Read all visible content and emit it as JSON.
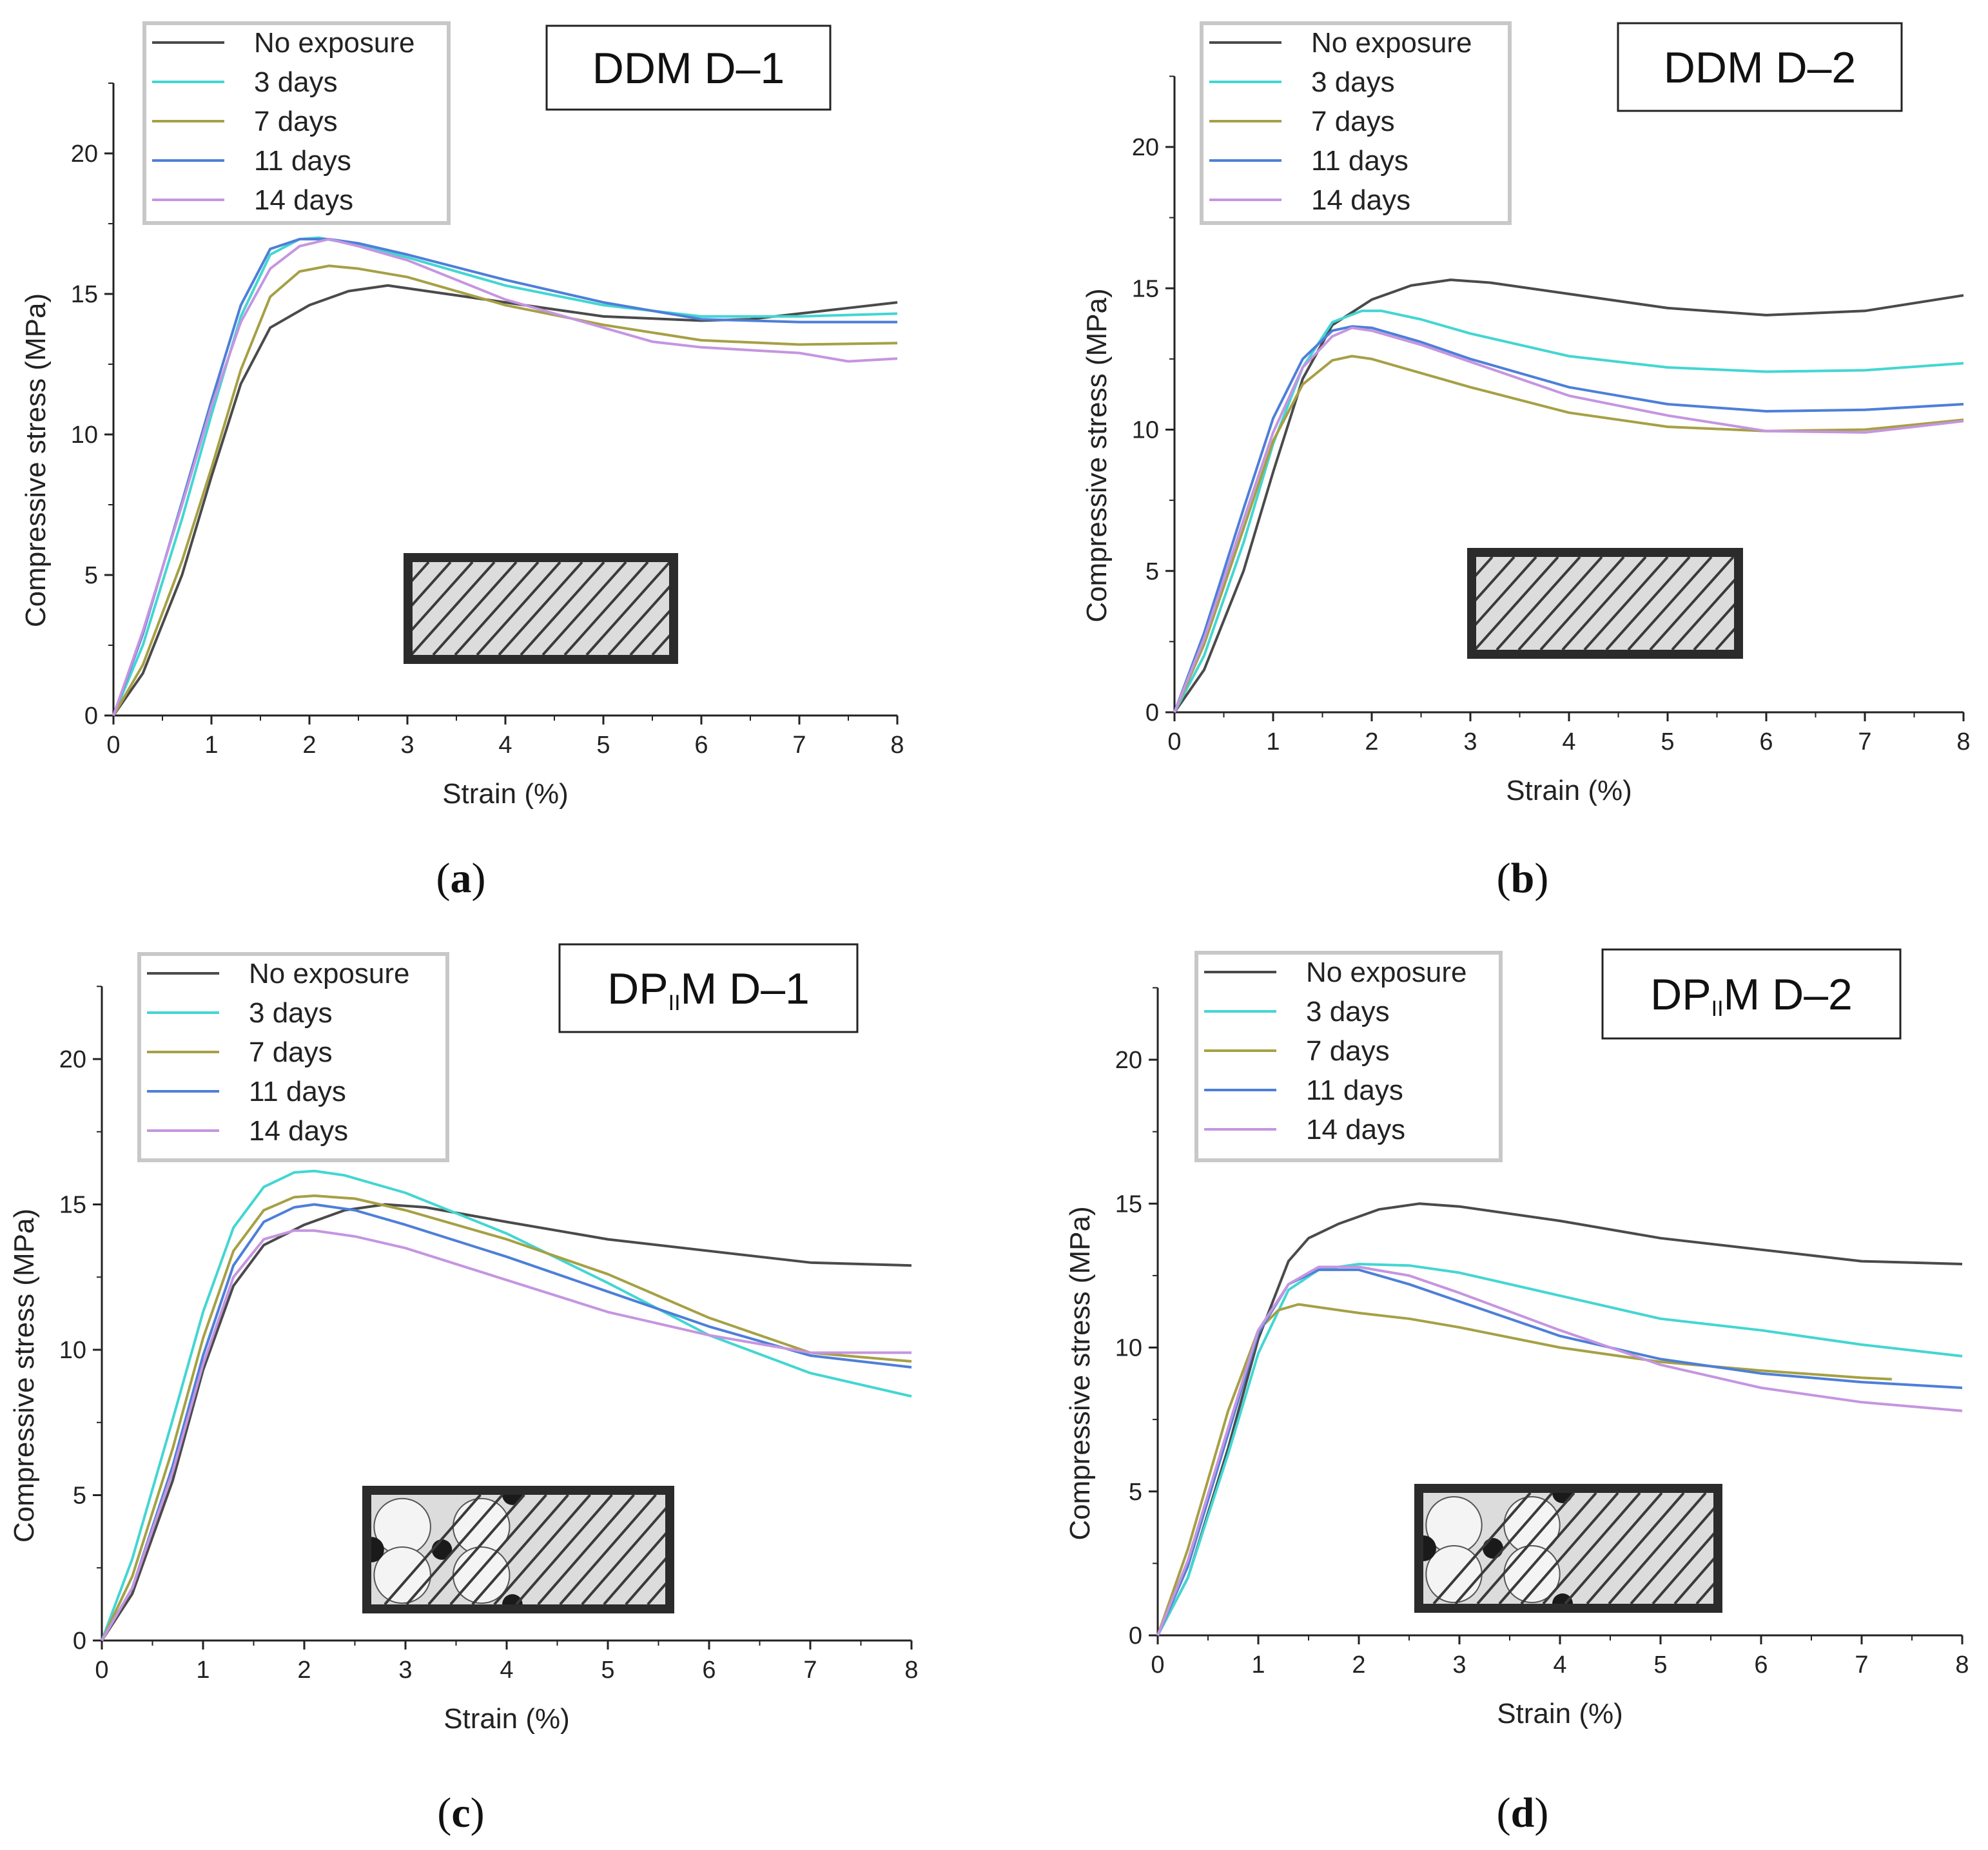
{
  "figure": {
    "colors": {
      "no_exposure": "#4a4a4a",
      "d3": "#43d6d2",
      "d7": "#a6a045",
      "d11": "#4d7fd8",
      "d14": "#c595e0"
    },
    "legend_border": "#c8c8c8",
    "inset": {
      "frame": "#2b2b2b",
      "field": "#dcdcdc"
    }
  },
  "chart_data": [
    {
      "panel": "a",
      "caption": "a",
      "type": "line",
      "title": "DDM D–1",
      "xlabel": "Strain  (%)",
      "ylabel": "Compressive stress (MPa)",
      "xlim": [
        0,
        8
      ],
      "ylim": [
        0,
        22.5
      ],
      "xticks": [
        "0",
        "1",
        "2",
        "3",
        "4",
        "5",
        "6",
        "7",
        "8"
      ],
      "yticks": [
        "0",
        "5",
        "10",
        "15",
        "20"
      ],
      "legend_position": "top-left",
      "inset_pattern": "lattice",
      "series": [
        {
          "name": "No exposure",
          "color_key": "no_exposure",
          "x": [
            0,
            0.3,
            0.7,
            1.0,
            1.3,
            1.6,
            2.0,
            2.4,
            2.8,
            3.2,
            4.0,
            5.0,
            6.0,
            6.5,
            7.0,
            7.5,
            8.0
          ],
          "y": [
            0,
            1.5,
            5.0,
            8.5,
            11.8,
            13.8,
            14.6,
            15.1,
            15.3,
            15.1,
            14.7,
            14.2,
            14.05,
            14.1,
            14.3,
            14.5,
            14.7
          ]
        },
        {
          "name": "3 days",
          "color_key": "d3",
          "x": [
            0,
            0.3,
            0.7,
            1.0,
            1.3,
            1.6,
            1.9,
            2.1,
            2.4,
            3.0,
            4.0,
            5.0,
            6.0,
            7.0,
            8.0
          ],
          "y": [
            0,
            2.5,
            7.0,
            10.7,
            14.2,
            16.4,
            16.95,
            17.0,
            16.8,
            16.3,
            15.3,
            14.6,
            14.2,
            14.2,
            14.3
          ]
        },
        {
          "name": "7 days",
          "color_key": "d7",
          "x": [
            0,
            0.3,
            0.7,
            1.0,
            1.3,
            1.6,
            1.9,
            2.2,
            2.5,
            3.0,
            4.0,
            5.0,
            6.0,
            7.0,
            8.0
          ],
          "y": [
            0,
            1.8,
            5.5,
            8.8,
            12.3,
            14.9,
            15.8,
            16.0,
            15.9,
            15.6,
            14.6,
            13.9,
            13.35,
            13.2,
            13.25
          ]
        },
        {
          "name": "11 days",
          "color_key": "d11",
          "x": [
            0,
            0.3,
            0.7,
            1.0,
            1.3,
            1.6,
            1.9,
            2.2,
            2.5,
            3.0,
            4.0,
            5.0,
            6.0,
            7.0,
            8.0
          ],
          "y": [
            0,
            2.9,
            7.6,
            11.2,
            14.6,
            16.6,
            16.95,
            16.95,
            16.8,
            16.4,
            15.5,
            14.7,
            14.1,
            14.0,
            14.0
          ]
        },
        {
          "name": "14 days",
          "color_key": "d14",
          "x": [
            0,
            0.3,
            0.7,
            1.0,
            1.3,
            1.6,
            1.9,
            2.2,
            2.5,
            3.0,
            4.0,
            5.0,
            5.5,
            6.0,
            7.0,
            7.5,
            8.0
          ],
          "y": [
            0,
            3.0,
            7.5,
            11.0,
            14.0,
            15.9,
            16.7,
            16.95,
            16.7,
            16.2,
            14.8,
            13.8,
            13.3,
            13.1,
            12.9,
            12.6,
            12.7
          ]
        }
      ]
    },
    {
      "panel": "b",
      "caption": "b",
      "type": "line",
      "title": "DDM D–2",
      "xlabel": "Strain  (%)",
      "ylabel": "Compressive stress (MPa)",
      "xlim": [
        0,
        8
      ],
      "ylim": [
        0,
        22.5
      ],
      "xticks": [
        "0",
        "1",
        "2",
        "3",
        "4",
        "5",
        "6",
        "7",
        "8"
      ],
      "yticks": [
        "0",
        "5",
        "10",
        "15",
        "20"
      ],
      "legend_position": "top-left",
      "inset_pattern": "lattice",
      "series": [
        {
          "name": "No exposure",
          "color_key": "no_exposure",
          "x": [
            0,
            0.3,
            0.7,
            1.0,
            1.3,
            1.6,
            2.0,
            2.4,
            2.8,
            3.2,
            4.0,
            5.0,
            6.0,
            7.0,
            8.0
          ],
          "y": [
            0,
            1.5,
            5.0,
            8.5,
            11.8,
            13.7,
            14.6,
            15.1,
            15.3,
            15.2,
            14.8,
            14.3,
            14.05,
            14.2,
            14.75
          ]
        },
        {
          "name": "3 days",
          "color_key": "d3",
          "x": [
            0,
            0.3,
            0.7,
            1.0,
            1.3,
            1.6,
            1.9,
            2.1,
            2.5,
            3.0,
            4.0,
            5.0,
            6.0,
            7.0,
            8.0
          ],
          "y": [
            0,
            2.0,
            6.0,
            9.5,
            12.2,
            13.8,
            14.2,
            14.2,
            13.9,
            13.4,
            12.6,
            12.2,
            12.05,
            12.1,
            12.35
          ]
        },
        {
          "name": "7 days",
          "color_key": "d7",
          "x": [
            0,
            0.3,
            0.7,
            1.0,
            1.3,
            1.6,
            1.8,
            2.0,
            2.5,
            3.0,
            4.0,
            5.0,
            6.0,
            7.0,
            8.0
          ],
          "y": [
            0,
            2.4,
            6.5,
            9.6,
            11.6,
            12.45,
            12.6,
            12.5,
            12.0,
            11.5,
            10.6,
            10.1,
            9.95,
            10.0,
            10.35
          ]
        },
        {
          "name": "11 days",
          "color_key": "d11",
          "x": [
            0,
            0.3,
            0.7,
            1.0,
            1.3,
            1.6,
            1.8,
            2.0,
            2.5,
            3.0,
            4.0,
            5.0,
            6.0,
            7.0,
            8.0
          ],
          "y": [
            0,
            2.8,
            7.2,
            10.4,
            12.5,
            13.5,
            13.65,
            13.6,
            13.1,
            12.5,
            11.5,
            10.9,
            10.65,
            10.7,
            10.9
          ]
        },
        {
          "name": "14 days",
          "color_key": "d14",
          "x": [
            0,
            0.3,
            0.7,
            1.0,
            1.3,
            1.6,
            1.8,
            2.0,
            2.5,
            3.0,
            4.0,
            5.0,
            6.0,
            7.0,
            8.0
          ],
          "y": [
            0,
            2.6,
            6.8,
            9.9,
            12.2,
            13.3,
            13.6,
            13.5,
            13.0,
            12.4,
            11.2,
            10.5,
            9.95,
            9.9,
            10.3
          ]
        }
      ]
    },
    {
      "panel": "c",
      "caption": "c",
      "type": "line",
      "title": "DP₁₁M D–1",
      "title_main": "DP",
      "title_sub": "II",
      "title_rest": "M D–1",
      "xlabel": "Strain  (%)",
      "ylabel": "Compressive stress (MPa)",
      "xlim": [
        0,
        8
      ],
      "ylim": [
        0,
        22.5
      ],
      "xticks": [
        "0",
        "1",
        "2",
        "3",
        "4",
        "5",
        "6",
        "7",
        "8"
      ],
      "yticks": [
        "0",
        "5",
        "10",
        "15",
        "20"
      ],
      "legend_position": "top-left",
      "inset_pattern": "hybrid",
      "series": [
        {
          "name": "No exposure",
          "color_key": "no_exposure",
          "x": [
            0,
            0.3,
            0.7,
            1.0,
            1.3,
            1.6,
            2.0,
            2.4,
            2.8,
            3.2,
            4.0,
            5.0,
            6.0,
            6.5,
            7.0,
            7.5,
            8.0
          ],
          "y": [
            0,
            1.6,
            5.5,
            9.3,
            12.2,
            13.6,
            14.3,
            14.8,
            15.0,
            14.9,
            14.4,
            13.8,
            13.4,
            13.2,
            13.0,
            12.95,
            12.9
          ]
        },
        {
          "name": "3 days",
          "color_key": "d3",
          "x": [
            0,
            0.3,
            0.7,
            1.0,
            1.3,
            1.6,
            1.9,
            2.1,
            2.4,
            3.0,
            4.0,
            5.0,
            6.0,
            7.0,
            8.0
          ],
          "y": [
            0,
            2.8,
            7.6,
            11.3,
            14.2,
            15.6,
            16.1,
            16.15,
            16.0,
            15.4,
            14.0,
            12.3,
            10.5,
            9.2,
            8.4
          ]
        },
        {
          "name": "7 days",
          "color_key": "d7",
          "x": [
            0,
            0.3,
            0.7,
            1.0,
            1.3,
            1.6,
            1.9,
            2.1,
            2.5,
            3.0,
            4.0,
            5.0,
            6.0,
            7.0,
            8.0
          ],
          "y": [
            0,
            2.2,
            6.6,
            10.4,
            13.4,
            14.8,
            15.25,
            15.3,
            15.2,
            14.8,
            13.8,
            12.6,
            11.1,
            9.9,
            9.6
          ]
        },
        {
          "name": "11 days",
          "color_key": "d11",
          "x": [
            0,
            0.3,
            0.7,
            1.0,
            1.3,
            1.6,
            1.9,
            2.1,
            2.5,
            3.0,
            4.0,
            5.0,
            6.0,
            7.0,
            8.0
          ],
          "y": [
            0,
            1.8,
            6.0,
            9.8,
            12.9,
            14.4,
            14.9,
            15.0,
            14.8,
            14.3,
            13.2,
            12.0,
            10.8,
            9.8,
            9.4
          ]
        },
        {
          "name": "14 days",
          "color_key": "d14",
          "x": [
            0,
            0.3,
            0.7,
            1.0,
            1.3,
            1.6,
            1.9,
            2.1,
            2.5,
            3.0,
            4.0,
            5.0,
            6.0,
            7.0,
            8.0
          ],
          "y": [
            0,
            1.8,
            5.8,
            9.5,
            12.5,
            13.8,
            14.1,
            14.1,
            13.9,
            13.5,
            12.4,
            11.3,
            10.5,
            9.9,
            9.9
          ]
        }
      ]
    },
    {
      "panel": "d",
      "caption": "d",
      "type": "line",
      "title": "DP₁₁M D–2",
      "title_main": "DP",
      "title_sub": "II",
      "title_rest": "M D–2",
      "xlabel": "Strain  (%)",
      "ylabel": "Compressive stress (MPa)",
      "xlim": [
        0,
        8
      ],
      "ylim": [
        0,
        22.5
      ],
      "xticks": [
        "0",
        "1",
        "2",
        "3",
        "4",
        "5",
        "6",
        "7",
        "8"
      ],
      "yticks": [
        "0",
        "5",
        "10",
        "15",
        "20"
      ],
      "legend_position": "top-left",
      "inset_pattern": "hybrid",
      "series": [
        {
          "name": "No exposure",
          "color_key": "no_exposure",
          "x": [
            0,
            0.3,
            0.7,
            1.0,
            1.3,
            1.5,
            1.8,
            2.2,
            2.6,
            3.0,
            4.0,
            5.0,
            6.0,
            6.5,
            7.0,
            7.5,
            8.0
          ],
          "y": [
            0,
            2.0,
            6.5,
            10.3,
            13.0,
            13.8,
            14.3,
            14.8,
            15.0,
            14.9,
            14.4,
            13.8,
            13.4,
            13.2,
            13.0,
            12.95,
            12.9
          ]
        },
        {
          "name": "3 days",
          "color_key": "d3",
          "x": [
            0,
            0.3,
            0.7,
            1.0,
            1.3,
            1.6,
            2.0,
            2.5,
            3.0,
            4.0,
            5.0,
            6.0,
            7.0,
            8.0
          ],
          "y": [
            0,
            2.0,
            6.3,
            9.8,
            12.0,
            12.7,
            12.9,
            12.85,
            12.6,
            11.8,
            11.0,
            10.6,
            10.1,
            9.7
          ]
        },
        {
          "name": "7 days",
          "color_key": "d7",
          "x": [
            0,
            0.3,
            0.7,
            1.0,
            1.2,
            1.4,
            1.6,
            2.0,
            2.5,
            3.0,
            4.0,
            5.0,
            6.0,
            7.0,
            7.3
          ],
          "y": [
            0,
            3.0,
            7.8,
            10.6,
            11.3,
            11.5,
            11.4,
            11.2,
            11.0,
            10.7,
            10.0,
            9.5,
            9.2,
            8.95,
            8.9
          ]
        },
        {
          "name": "11 days",
          "color_key": "d11",
          "x": [
            0,
            0.3,
            0.7,
            1.0,
            1.3,
            1.6,
            2.0,
            2.5,
            3.0,
            4.0,
            5.0,
            6.0,
            7.0,
            8.0
          ],
          "y": [
            0,
            2.4,
            7.0,
            10.5,
            12.2,
            12.7,
            12.7,
            12.2,
            11.6,
            10.4,
            9.6,
            9.1,
            8.8,
            8.6
          ]
        },
        {
          "name": "14 days",
          "color_key": "d14",
          "x": [
            0,
            0.3,
            0.7,
            1.0,
            1.3,
            1.6,
            2.0,
            2.5,
            3.0,
            4.0,
            5.0,
            6.0,
            7.0,
            8.0
          ],
          "y": [
            0,
            2.6,
            7.2,
            10.6,
            12.2,
            12.8,
            12.8,
            12.5,
            11.9,
            10.6,
            9.4,
            8.6,
            8.1,
            7.8
          ]
        }
      ]
    }
  ]
}
